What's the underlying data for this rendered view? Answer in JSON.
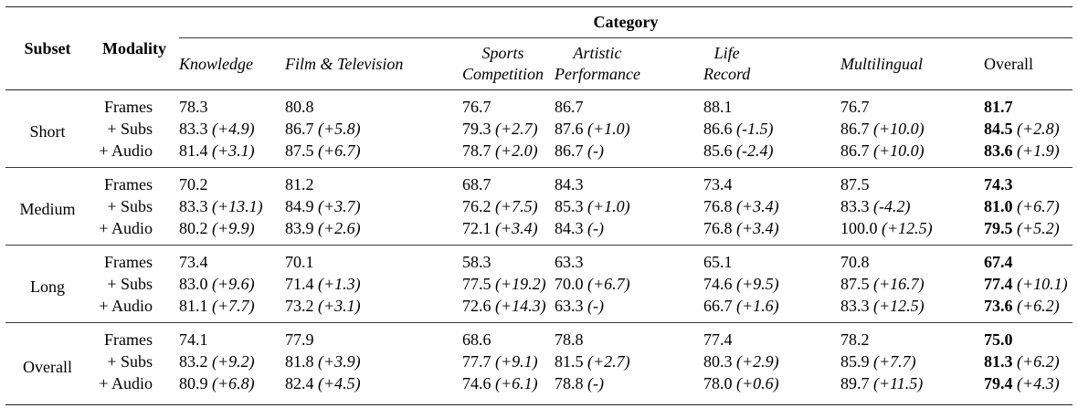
{
  "colors": {
    "text": "#000000",
    "rule_heavy": "#222222",
    "rule_light": "#3a3a3a",
    "background": "#ffffff"
  },
  "header": {
    "subset": "Subset",
    "modality": "Modality",
    "category": "Category",
    "columns": [
      {
        "lines": [
          "Knowledge"
        ],
        "italic": true
      },
      {
        "lines": [
          "Film & Television"
        ],
        "italic": true
      },
      {
        "lines": [
          "Sports",
          "Competition"
        ],
        "italic": true
      },
      {
        "lines": [
          "Artistic",
          "Performance"
        ],
        "italic": true
      },
      {
        "lines": [
          "Life",
          "Record"
        ],
        "italic": true
      },
      {
        "lines": [
          "Multilingual"
        ],
        "italic": true
      },
      {
        "lines": [
          "Overall"
        ],
        "italic": false
      }
    ]
  },
  "groups": [
    {
      "subset": "Short",
      "rows": [
        {
          "modality": "Frames",
          "cells": [
            [
              "78.3",
              ""
            ],
            [
              "80.8",
              ""
            ],
            [
              "76.7",
              ""
            ],
            [
              "86.7",
              ""
            ],
            [
              "88.1",
              ""
            ],
            [
              "76.7",
              ""
            ],
            [
              "81.7",
              ""
            ]
          ]
        },
        {
          "modality": "+ Subs",
          "cells": [
            [
              "83.3",
              "(+4.9)"
            ],
            [
              "86.7",
              "(+5.8)"
            ],
            [
              "79.3",
              "(+2.7)"
            ],
            [
              "87.6",
              "(+1.0)"
            ],
            [
              "86.6",
              "(-1.5)"
            ],
            [
              "86.7",
              "(+10.0)"
            ],
            [
              "84.5",
              "(+2.8)"
            ]
          ]
        },
        {
          "modality": "+ Audio",
          "cells": [
            [
              "81.4",
              "(+3.1)"
            ],
            [
              "87.5",
              "(+6.7)"
            ],
            [
              "78.7",
              "(+2.0)"
            ],
            [
              "86.7",
              "(-)"
            ],
            [
              "85.6",
              "(-2.4)"
            ],
            [
              "86.7",
              "(+10.0)"
            ],
            [
              "83.6",
              "(+1.9)"
            ]
          ]
        }
      ]
    },
    {
      "subset": "Medium",
      "rows": [
        {
          "modality": "Frames",
          "cells": [
            [
              "70.2",
              ""
            ],
            [
              "81.2",
              ""
            ],
            [
              "68.7",
              ""
            ],
            [
              "84.3",
              ""
            ],
            [
              "73.4",
              ""
            ],
            [
              "87.5",
              ""
            ],
            [
              "74.3",
              ""
            ]
          ]
        },
        {
          "modality": "+ Subs",
          "cells": [
            [
              "83.3",
              "(+13.1)"
            ],
            [
              "84.9",
              "(+3.7)"
            ],
            [
              "76.2",
              "(+7.5)"
            ],
            [
              "85.3",
              "(+1.0)"
            ],
            [
              "76.8",
              "(+3.4)"
            ],
            [
              "83.3",
              "(-4.2)"
            ],
            [
              "81.0",
              "(+6.7)"
            ]
          ]
        },
        {
          "modality": "+ Audio",
          "cells": [
            [
              "80.2",
              "(+9.9)"
            ],
            [
              "83.9",
              "(+2.6)"
            ],
            [
              "72.1",
              "(+3.4)"
            ],
            [
              "84.3",
              "(-)"
            ],
            [
              "76.8",
              "(+3.4)"
            ],
            [
              "100.0",
              "(+12.5)"
            ],
            [
              "79.5",
              "(+5.2)"
            ]
          ]
        }
      ]
    },
    {
      "subset": "Long",
      "rows": [
        {
          "modality": "Frames",
          "cells": [
            [
              "73.4",
              ""
            ],
            [
              "70.1",
              ""
            ],
            [
              "58.3",
              ""
            ],
            [
              "63.3",
              ""
            ],
            [
              "65.1",
              ""
            ],
            [
              "70.8",
              ""
            ],
            [
              "67.4",
              ""
            ]
          ]
        },
        {
          "modality": "+ Subs",
          "cells": [
            [
              "83.0",
              "(+9.6)"
            ],
            [
              "71.4",
              "(+1.3)"
            ],
            [
              "77.5",
              "(+19.2)"
            ],
            [
              "70.0",
              "(+6.7)"
            ],
            [
              "74.6",
              "(+9.5)"
            ],
            [
              "87.5",
              "(+16.7)"
            ],
            [
              "77.4",
              "(+10.1)"
            ]
          ]
        },
        {
          "modality": "+ Audio",
          "cells": [
            [
              "81.1",
              "(+7.7)"
            ],
            [
              "73.2",
              "(+3.1)"
            ],
            [
              "72.6",
              "(+14.3)"
            ],
            [
              "63.3",
              "(-)"
            ],
            [
              "66.7",
              "(+1.6)"
            ],
            [
              "83.3",
              "(+12.5)"
            ],
            [
              "73.6",
              "(+6.2)"
            ]
          ]
        }
      ]
    },
    {
      "subset": "Overall",
      "rows": [
        {
          "modality": "Frames",
          "cells": [
            [
              "74.1",
              ""
            ],
            [
              "77.9",
              ""
            ],
            [
              "68.6",
              ""
            ],
            [
              "78.8",
              ""
            ],
            [
              "77.4",
              ""
            ],
            [
              "78.2",
              ""
            ],
            [
              "75.0",
              ""
            ]
          ]
        },
        {
          "modality": "+ Subs",
          "cells": [
            [
              "83.2",
              "(+9.2)"
            ],
            [
              "81.8",
              "(+3.9)"
            ],
            [
              "77.7",
              "(+9.1)"
            ],
            [
              "81.5",
              "(+2.7)"
            ],
            [
              "80.3",
              "(+2.9)"
            ],
            [
              "85.9",
              "(+7.7)"
            ],
            [
              "81.3",
              "(+6.2)"
            ]
          ]
        },
        {
          "modality": "+ Audio",
          "cells": [
            [
              "80.9",
              "(+6.8)"
            ],
            [
              "82.4",
              "(+4.5)"
            ],
            [
              "74.6",
              "(+6.1)"
            ],
            [
              "78.8",
              "(-)"
            ],
            [
              "78.0",
              "(+0.6)"
            ],
            [
              "89.7",
              "(+11.5)"
            ],
            [
              "79.4",
              "(+4.3)"
            ]
          ]
        }
      ]
    }
  ]
}
